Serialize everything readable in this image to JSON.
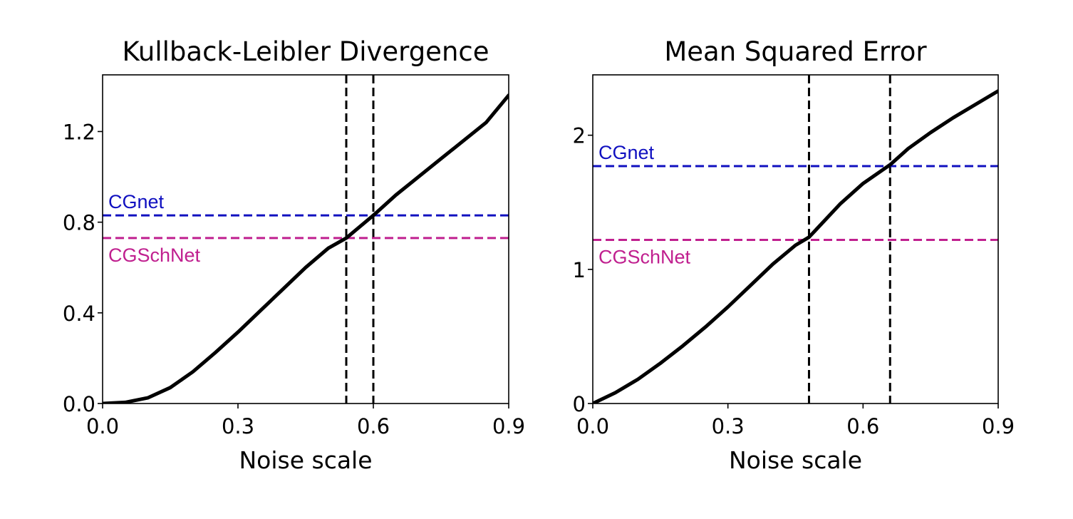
{
  "chart_data": [
    {
      "type": "line",
      "title": "Kullback-Leibler Divergence",
      "xlabel": "Noise scale",
      "ylabel": "",
      "xlim": [
        0.0,
        0.9
      ],
      "ylim": [
        0.0,
        1.45
      ],
      "xticks": [
        0.0,
        0.3,
        0.6,
        0.9
      ],
      "xtick_labels": [
        "0.0",
        "0.3",
        "0.6",
        "0.9"
      ],
      "yticks": [
        0.0,
        0.4,
        0.8,
        1.2
      ],
      "ytick_labels": [
        "0.0",
        "0.4",
        "0.8",
        "1.2"
      ],
      "grid": false,
      "series": [
        {
          "color": "#000000",
          "x": [
            0.0,
            0.05,
            0.1,
            0.15,
            0.2,
            0.25,
            0.3,
            0.35,
            0.4,
            0.45,
            0.5,
            0.54,
            0.6,
            0.65,
            0.7,
            0.75,
            0.8,
            0.85,
            0.9
          ],
          "y": [
            0.0,
            0.005,
            0.025,
            0.07,
            0.14,
            0.225,
            0.315,
            0.41,
            0.505,
            0.6,
            0.685,
            0.73,
            0.83,
            0.92,
            1.0,
            1.08,
            1.16,
            1.24,
            1.36
          ]
        }
      ],
      "hlines": [
        {
          "label": "CGnet",
          "y": 0.83,
          "color": "#1010c0",
          "label_pos": "above"
        },
        {
          "label": "CGSchNet",
          "y": 0.73,
          "color": "#c0208f",
          "label_pos": "below"
        }
      ],
      "vlines": [
        {
          "x": 0.54,
          "color": "#000000"
        },
        {
          "x": 0.6,
          "color": "#000000"
        }
      ]
    },
    {
      "type": "line",
      "title": "Mean Squared Error",
      "xlabel": "Noise scale",
      "ylabel": "",
      "xlim": [
        0.0,
        0.9
      ],
      "ylim": [
        0.0,
        2.45
      ],
      "xticks": [
        0.0,
        0.3,
        0.6,
        0.9
      ],
      "xtick_labels": [
        "0.0",
        "0.3",
        "0.6",
        "0.9"
      ],
      "yticks": [
        0,
        1,
        2
      ],
      "ytick_labels": [
        "0",
        "1",
        "2"
      ],
      "grid": false,
      "series": [
        {
          "color": "#000000",
          "x": [
            0.0,
            0.05,
            0.1,
            0.15,
            0.2,
            0.25,
            0.3,
            0.35,
            0.4,
            0.45,
            0.48,
            0.55,
            0.6,
            0.66,
            0.7,
            0.75,
            0.8,
            0.85,
            0.9
          ],
          "y": [
            0.0,
            0.08,
            0.18,
            0.3,
            0.43,
            0.57,
            0.72,
            0.88,
            1.04,
            1.18,
            1.24,
            1.49,
            1.64,
            1.78,
            1.9,
            2.02,
            2.13,
            2.23,
            2.33
          ]
        }
      ],
      "hlines": [
        {
          "label": "CGnet",
          "y": 1.77,
          "color": "#1010c0",
          "label_pos": "above"
        },
        {
          "label": "CGSchNet",
          "y": 1.22,
          "color": "#c0208f",
          "label_pos": "below"
        }
      ],
      "vlines": [
        {
          "x": 0.48,
          "color": "#000000"
        },
        {
          "x": 0.66,
          "color": "#000000"
        }
      ]
    }
  ]
}
